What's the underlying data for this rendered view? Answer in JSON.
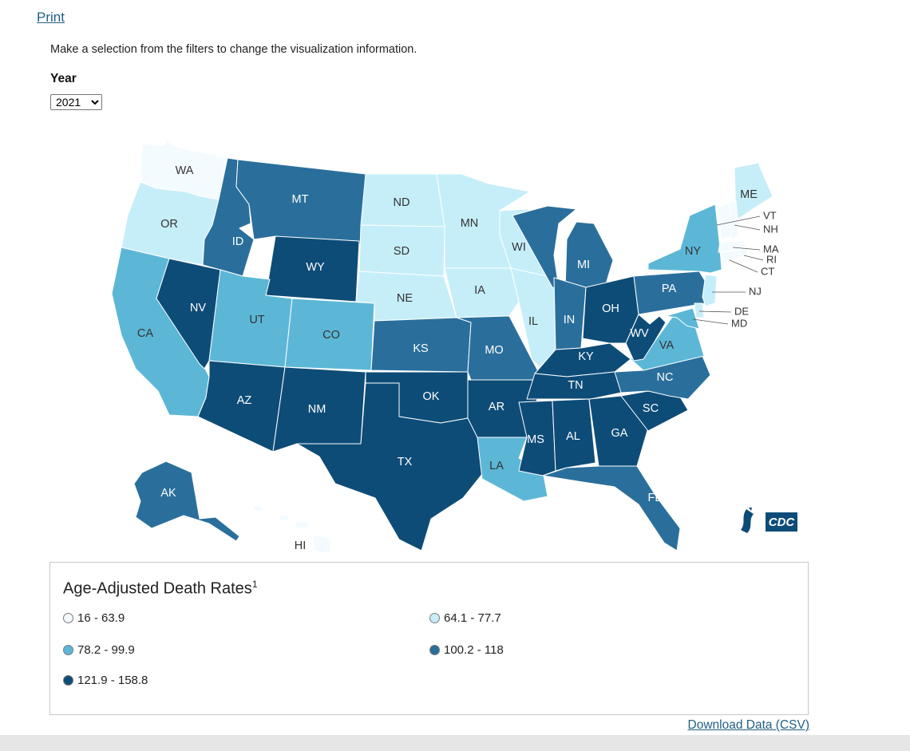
{
  "header": {
    "print_label": "Print",
    "instructions": "Make a selection from the filters to change the visualization information.",
    "year_label": "Year",
    "year_selected": "2021"
  },
  "colors": {
    "c1": "#f4fbff",
    "c2": "#c6eef9",
    "c3": "#5cb7d6",
    "c4": "#2a6f9c",
    "c5": "#0e4c78"
  },
  "legend": {
    "title": "Age-Adjusted Death Rates",
    "footnote": "1",
    "items": [
      {
        "label": "16 - 63.9",
        "color": "#f4fbff"
      },
      {
        "label": "64.1 - 77.7",
        "color": "#c6eef9"
      },
      {
        "label": "78.2 - 99.9",
        "color": "#5cb7d6"
      },
      {
        "label": "100.2 - 118",
        "color": "#2a6f9c"
      },
      {
        "label": "121.9 - 158.8",
        "color": "#0e4c78"
      }
    ]
  },
  "states": {
    "WA": "c1",
    "OR": "c2",
    "CA": "c3",
    "NV": "c5",
    "ID": "c4",
    "MT": "c4",
    "WY": "c5",
    "UT": "c3",
    "CO": "c3",
    "AZ": "c5",
    "NM": "c5",
    "ND": "c2",
    "SD": "c2",
    "NE": "c2",
    "KS": "c4",
    "OK": "c5",
    "TX": "c5",
    "MN": "c2",
    "IA": "c2",
    "MO": "c4",
    "AR": "c5",
    "LA": "c3",
    "WI": "c2",
    "IL": "c2",
    "MI": "c4",
    "IN": "c4",
    "OH": "c5",
    "KY": "c5",
    "TN": "c5",
    "MS": "c5",
    "AL": "c5",
    "GA": "c5",
    "FL": "c4",
    "SC": "c5",
    "NC": "c4",
    "VA": "c3",
    "WV": "c5",
    "PA": "c4",
    "NY": "c3",
    "ME": "c2",
    "VT": "c1",
    "NH": "c1",
    "MA": "c1",
    "RI": "c1",
    "CT": "c1",
    "NJ": "c2",
    "DE": "c2",
    "MD": "c3",
    "DC": "c3",
    "AK": "c4",
    "HI": "c1"
  },
  "external_labels": [
    "VT",
    "NH",
    "MA",
    "RI",
    "CT",
    "NJ",
    "DE",
    "MD"
  ],
  "download_label": "Download Data (CSV)"
}
